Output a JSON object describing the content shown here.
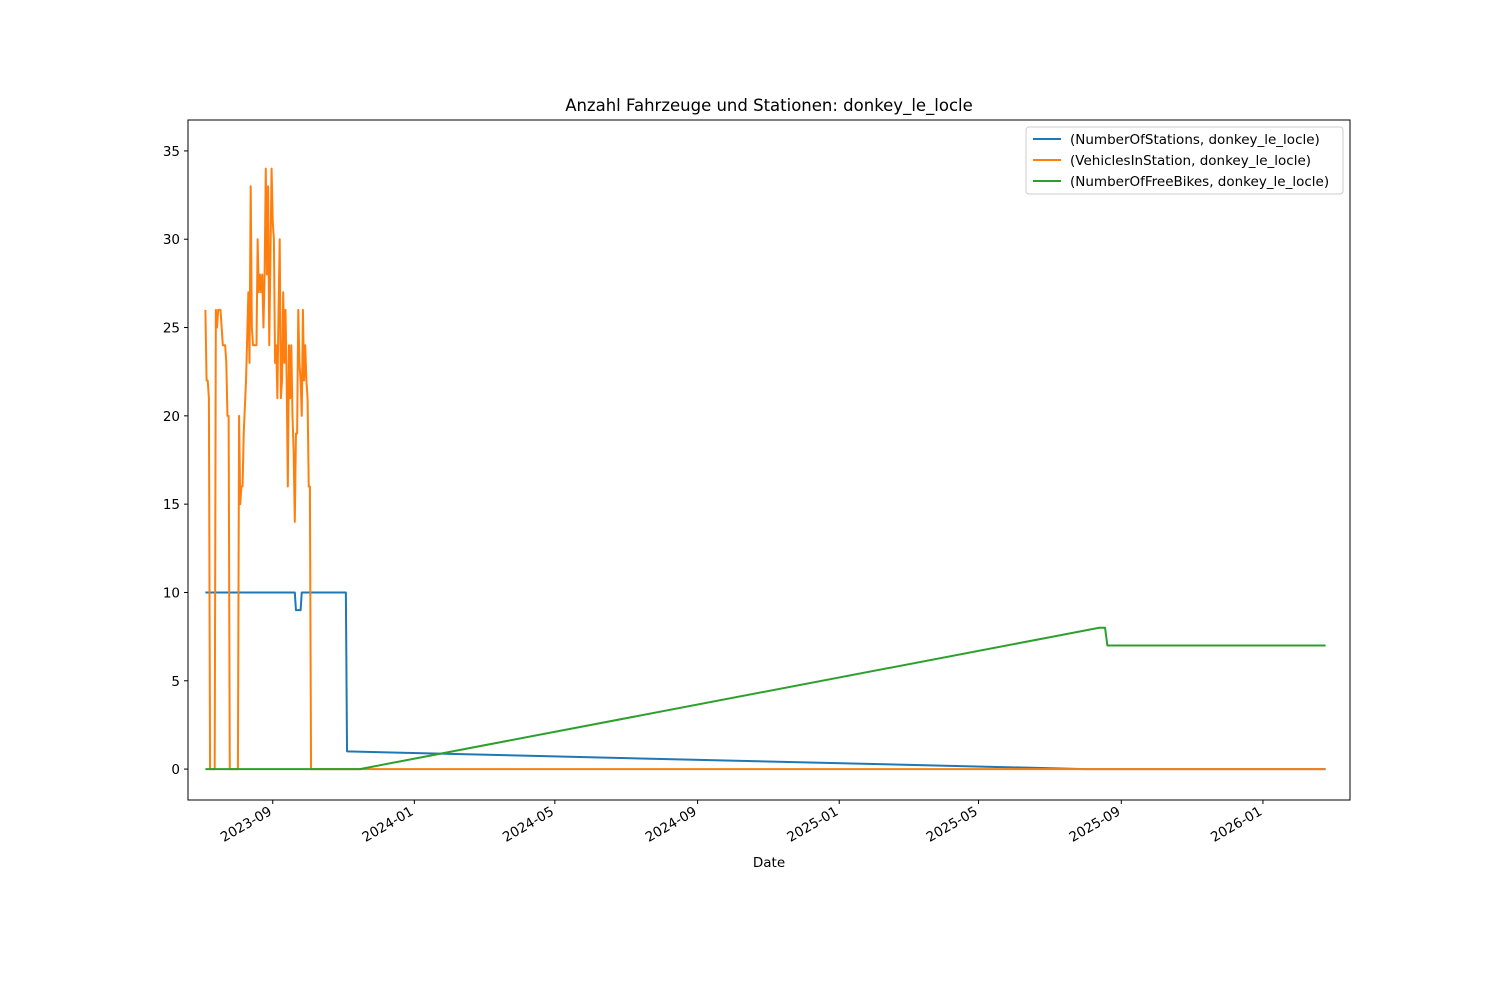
{
  "chart_data": {
    "type": "line",
    "title": "Anzahl Fahrzeuge und Stationen: donkey_le_locle",
    "xlabel": "Date",
    "ylabel": "",
    "x_axis": {
      "type": "date",
      "range": [
        "2023-06-20",
        "2026-03-17"
      ],
      "ticks": [
        "2023-09-01",
        "2024-01-01",
        "2024-05-01",
        "2024-09-01",
        "2025-01-01",
        "2025-05-01",
        "2025-09-01",
        "2026-01-01"
      ],
      "tick_labels": [
        "2023-09",
        "2024-01",
        "2024-05",
        "2024-09",
        "2025-01",
        "2025-05",
        "2025-09",
        "2026-01"
      ]
    },
    "y_axis": {
      "range": [
        -1.75,
        36.75
      ],
      "ticks": [
        0,
        5,
        10,
        15,
        20,
        25,
        30,
        35
      ],
      "tick_labels": [
        "0",
        "5",
        "10",
        "15",
        "20",
        "25",
        "30",
        "35"
      ]
    },
    "grid": false,
    "legend_position": "top-right",
    "series": [
      {
        "name": "(NumberOfStations, donkey_le_locle)",
        "color": "#1f77b4",
        "points": [
          [
            "2023-07-05",
            10
          ],
          [
            "2023-09-20",
            10
          ],
          [
            "2023-09-21",
            9
          ],
          [
            "2023-09-25",
            9
          ],
          [
            "2023-09-26",
            10
          ],
          [
            "2023-11-03",
            10
          ],
          [
            "2023-11-04",
            1
          ],
          [
            "2025-08-01",
            0
          ],
          [
            "2026-02-24",
            0
          ]
        ]
      },
      {
        "name": "(VehiclesInStation, donkey_le_locle)",
        "color": "#ff7f0e",
        "points": [
          [
            "2023-07-05",
            26
          ],
          [
            "2023-07-06",
            22
          ],
          [
            "2023-07-07",
            22
          ],
          [
            "2023-07-08",
            21
          ],
          [
            "2023-07-09",
            0
          ],
          [
            "2023-07-13",
            0
          ],
          [
            "2023-07-14",
            26
          ],
          [
            "2023-07-15",
            25
          ],
          [
            "2023-07-16",
            26
          ],
          [
            "2023-07-18",
            26
          ],
          [
            "2023-07-20",
            24
          ],
          [
            "2023-07-22",
            24
          ],
          [
            "2023-07-23",
            23
          ],
          [
            "2023-07-24",
            20
          ],
          [
            "2023-07-25",
            20
          ],
          [
            "2023-07-26",
            0
          ],
          [
            "2023-08-02",
            0
          ],
          [
            "2023-08-03",
            20
          ],
          [
            "2023-08-04",
            15
          ],
          [
            "2023-08-05",
            16
          ],
          [
            "2023-08-06",
            16
          ],
          [
            "2023-08-07",
            19
          ],
          [
            "2023-08-09",
            22
          ],
          [
            "2023-08-11",
            27
          ],
          [
            "2023-08-12",
            23
          ],
          [
            "2023-08-13",
            33
          ],
          [
            "2023-08-14",
            25
          ],
          [
            "2023-08-15",
            24
          ],
          [
            "2023-08-18",
            24
          ],
          [
            "2023-08-19",
            30
          ],
          [
            "2023-08-20",
            27
          ],
          [
            "2023-08-21",
            28
          ],
          [
            "2023-08-22",
            27
          ],
          [
            "2023-08-23",
            28
          ],
          [
            "2023-08-24",
            25
          ],
          [
            "2023-08-25",
            28
          ],
          [
            "2023-08-26",
            34
          ],
          [
            "2023-08-27",
            28
          ],
          [
            "2023-08-28",
            33
          ],
          [
            "2023-08-29",
            24
          ],
          [
            "2023-08-30",
            29
          ],
          [
            "2023-08-31",
            34
          ],
          [
            "2023-09-01",
            31
          ],
          [
            "2023-09-02",
            30
          ],
          [
            "2023-09-03",
            23
          ],
          [
            "2023-09-04",
            24
          ],
          [
            "2023-09-05",
            21
          ],
          [
            "2023-09-06",
            26
          ],
          [
            "2023-09-07",
            30
          ],
          [
            "2023-09-08",
            21
          ],
          [
            "2023-09-09",
            22
          ],
          [
            "2023-09-10",
            27
          ],
          [
            "2023-09-11",
            23
          ],
          [
            "2023-09-12",
            26
          ],
          [
            "2023-09-13",
            22
          ],
          [
            "2023-09-14",
            16
          ],
          [
            "2023-09-15",
            24
          ],
          [
            "2023-09-16",
            21
          ],
          [
            "2023-09-17",
            24
          ],
          [
            "2023-09-18",
            20
          ],
          [
            "2023-09-19",
            18
          ],
          [
            "2023-09-20",
            14
          ],
          [
            "2023-09-21",
            19
          ],
          [
            "2023-09-22",
            19
          ],
          [
            "2023-09-23",
            26
          ],
          [
            "2023-09-24",
            23
          ],
          [
            "2023-09-25",
            22
          ],
          [
            "2023-09-26",
            20
          ],
          [
            "2023-09-27",
            26
          ],
          [
            "2023-09-28",
            22
          ],
          [
            "2023-09-29",
            24
          ],
          [
            "2023-09-30",
            22
          ],
          [
            "2023-10-01",
            21
          ],
          [
            "2023-10-02",
            16
          ],
          [
            "2023-10-03",
            16
          ],
          [
            "2023-10-04",
            0
          ],
          [
            "2026-02-24",
            0
          ]
        ]
      },
      {
        "name": "(NumberOfFreeBikes, donkey_le_locle)",
        "color": "#2ca02c",
        "points": [
          [
            "2023-07-05",
            0
          ],
          [
            "2023-11-15",
            0
          ],
          [
            "2025-08-13",
            8
          ],
          [
            "2025-08-18",
            8
          ],
          [
            "2025-08-20",
            7
          ],
          [
            "2026-02-24",
            7
          ]
        ]
      }
    ]
  }
}
